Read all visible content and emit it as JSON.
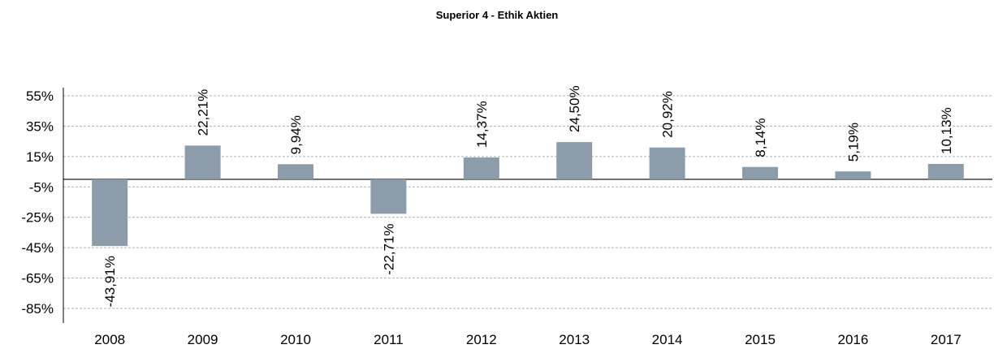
{
  "chart_data": {
    "type": "bar",
    "title": "Superior 4 - Ethik  Aktien",
    "categories": [
      "2008",
      "2009",
      "2010",
      "2011",
      "2012",
      "2013",
      "2014",
      "2015",
      "2016",
      "2017"
    ],
    "values": [
      -43.91,
      22.21,
      9.94,
      -22.71,
      14.37,
      24.5,
      20.92,
      8.14,
      5.19,
      10.13
    ],
    "data_labels": [
      "-43,91%",
      "22,21%",
      "9,94%",
      "-22,71%",
      "14,37%",
      "24,50%",
      "20,92%",
      "8,14%",
      "5,19%",
      "10,13%"
    ],
    "y_ticks": [
      55,
      35,
      15,
      -5,
      -25,
      -45,
      -65,
      -85
    ],
    "y_tick_labels": [
      "55%",
      "35%",
      "15%",
      "-5%",
      "-25%",
      "-45%",
      "-65%",
      "-85%"
    ],
    "ylim": [
      -85,
      55
    ],
    "xlabel": "",
    "ylabel": "",
    "grid": true,
    "bar_color": "#8c9cab",
    "grid_color": "#b0b0b0"
  }
}
